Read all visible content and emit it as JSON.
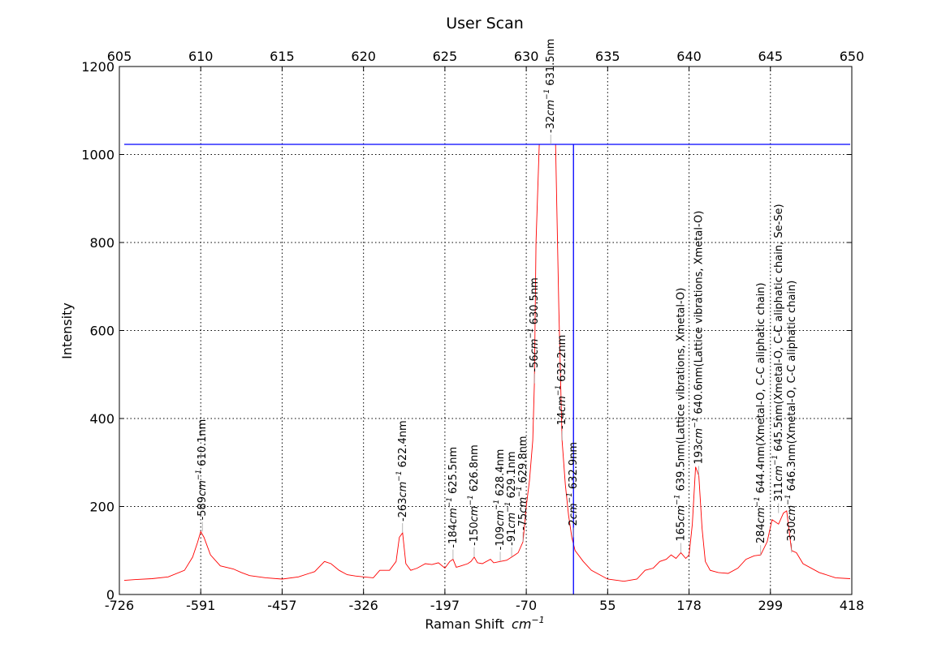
{
  "chart_data": {
    "type": "line",
    "title": "User Scan",
    "xlabel": "Raman Shift",
    "xlabel_unit": "cm",
    "xlabel_unit_exp": "−1",
    "ylabel": "Intensity",
    "grid": true,
    "xlim_nm": [
      605,
      650
    ],
    "ylim": [
      0,
      1200
    ],
    "y_ticks": [
      0,
      200,
      400,
      600,
      800,
      1000,
      1200
    ],
    "top_axis_ticks_nm": [
      605,
      610,
      615,
      620,
      625,
      630,
      635,
      640,
      645,
      650
    ],
    "bottom_axis_tick_labels": [
      "-726",
      "-591",
      "-457",
      "-326",
      "-197",
      "-70",
      "55",
      "178",
      "299",
      "418"
    ],
    "colors": {
      "spectrum": "#ff0000",
      "threshold": "#0000ff",
      "grid": "#000000"
    },
    "threshold": {
      "y": 1023,
      "x_nm": 632.9
    },
    "series": [
      {
        "x": [
          605.3,
          606,
          607,
          608,
          609,
          609.5,
          609.8,
          610.0,
          610.2,
          610.6,
          611.2,
          612,
          612.5,
          613,
          614,
          615,
          616,
          617,
          617.6,
          618,
          618.5,
          619,
          619.5,
          620,
          620.6,
          621,
          621.6,
          622.0,
          622.2,
          622.4,
          622.6,
          622.9,
          623.3,
          623.8,
          624.2,
          624.6,
          625.0,
          625.3,
          625.5,
          625.7,
          626.0,
          626.4,
          626.6,
          626.8,
          627.0,
          627.3,
          627.8,
          628.0,
          628.4,
          628.8,
          629.1,
          629.5,
          629.8,
          630.0,
          630.2,
          630.4,
          630.5,
          630.6,
          630.8,
          631.0,
          631.2,
          631.4,
          631.5,
          631.6,
          631.8,
          632.0,
          632.2,
          632.4,
          632.6,
          632.8,
          633.0,
          633.5,
          634,
          635,
          636,
          636.8,
          637.3,
          637.8,
          638.2,
          638.6,
          638.9,
          639.2,
          639.5,
          639.8,
          640.0,
          640.2,
          640.4,
          640.6,
          640.8,
          641.0,
          641.3,
          641.8,
          642.4,
          643,
          643.5,
          644.0,
          644.4,
          644.8,
          645.1,
          645.5,
          645.8,
          646.0,
          646.3,
          646.6,
          647,
          648,
          649,
          649.9
        ],
        "y": [
          32,
          34,
          36,
          40,
          55,
          85,
          118,
          143,
          130,
          90,
          65,
          58,
          50,
          43,
          38,
          35,
          40,
          52,
          75,
          70,
          55,
          45,
          42,
          40,
          38,
          55,
          55,
          75,
          130,
          140,
          70,
          55,
          60,
          70,
          68,
          72,
          60,
          75,
          80,
          62,
          65,
          70,
          75,
          85,
          72,
          70,
          80,
          72,
          75,
          78,
          85,
          95,
          120,
          200,
          260,
          350,
          480,
          800,
          1023,
          1023,
          1023,
          1023,
          1023,
          1023,
          1023,
          650,
          350,
          250,
          180,
          130,
          100,
          75,
          55,
          35,
          30,
          35,
          55,
          60,
          75,
          80,
          90,
          82,
          95,
          82,
          90,
          160,
          290,
          270,
          150,
          75,
          55,
          50,
          48,
          60,
          80,
          88,
          90,
          120,
          170,
          160,
          185,
          190,
          100,
          95,
          70,
          50,
          38,
          36
        ]
      }
    ],
    "annotations": [
      {
        "wn": "-589",
        "nm": "610.1nm",
        "x_nm": 610.1,
        "y": 143
      },
      {
        "wn": "-263",
        "nm": "622.4nm",
        "x_nm": 622.4,
        "y": 140
      },
      {
        "wn": "-184",
        "nm": "625.5nm",
        "x_nm": 625.5,
        "y": 80
      },
      {
        "wn": "-150",
        "nm": "626.8nm",
        "x_nm": 626.8,
        "y": 85
      },
      {
        "wn": "-109",
        "nm": "628.4nm",
        "x_nm": 628.4,
        "y": 75
      },
      {
        "wn": "-91",
        "nm": "629.1nm",
        "x_nm": 629.1,
        "y": 85
      },
      {
        "wn": "-75",
        "nm": "629.8nm",
        "x_nm": 629.8,
        "y": 120
      },
      {
        "wn": "-56",
        "nm": "630.5nm",
        "x_nm": 630.5,
        "y": 480
      },
      {
        "wn": "-32",
        "nm": "631.5nm",
        "x_nm": 631.5,
        "y": 1023
      },
      {
        "wn": "-14",
        "nm": "632.2nm",
        "x_nm": 632.2,
        "y": 350
      },
      {
        "wn": "2",
        "nm": "632.9nm",
        "x_nm": 632.9,
        "y": 130
      },
      {
        "wn": "165",
        "nm": "639.5nm(Lattice vibrations, Xmetal-O)",
        "x_nm": 639.5,
        "y": 95
      },
      {
        "wn": "193",
        "nm": "640.6nm(Lattice vibrations, Xmetal-O)",
        "x_nm": 640.6,
        "y": 270
      },
      {
        "wn": "284",
        "nm": "644.4nm(Xmetal-O, C-C aliphatic chain)",
        "x_nm": 644.4,
        "y": 90
      },
      {
        "wn": "311",
        "nm": "645.5nm(Xmetal-O, C-C aliphatic chain, Se-Se)",
        "x_nm": 645.5,
        "y": 185
      },
      {
        "wn": "330",
        "nm": "646.3nm(Xmetal-O, C-C aliphatic chain)",
        "x_nm": 646.3,
        "y": 95
      }
    ]
  }
}
